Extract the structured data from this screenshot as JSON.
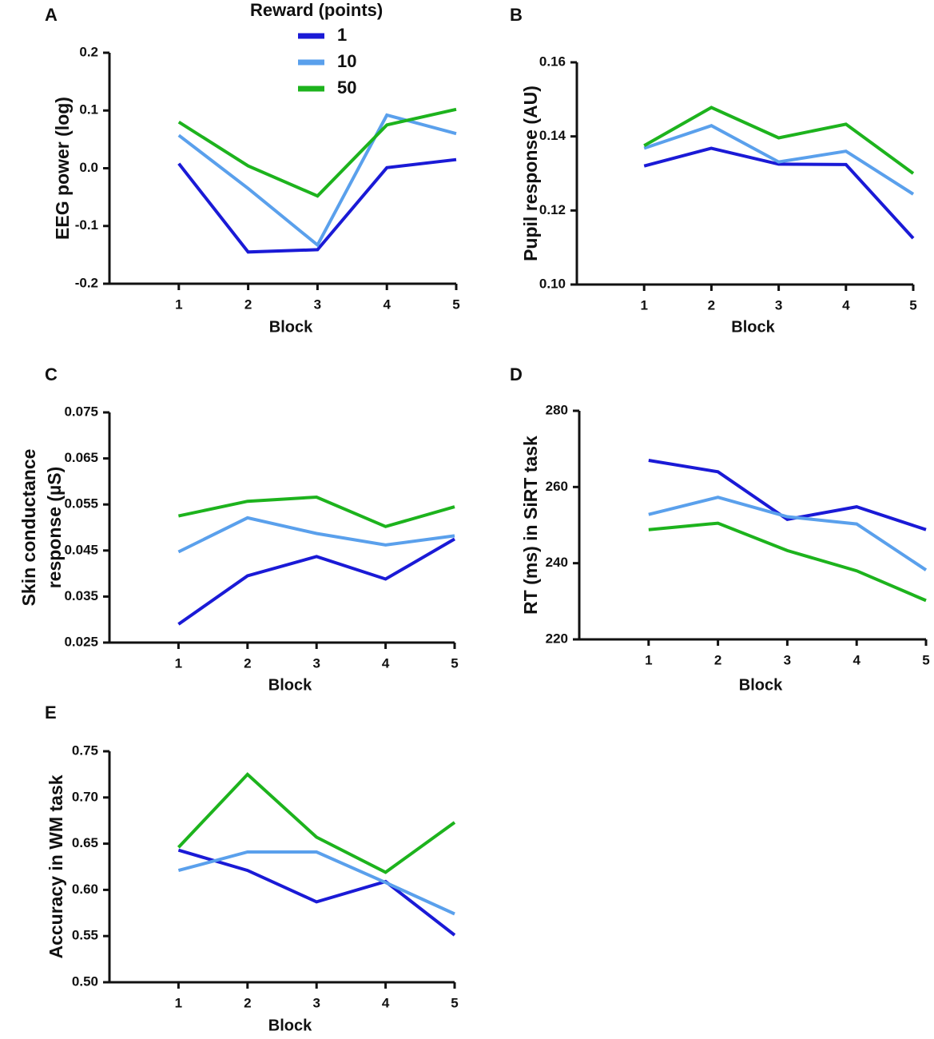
{
  "legend": {
    "title": "Reward (points)",
    "entries": [
      {
        "label": "1",
        "color": "#1a1ad6"
      },
      {
        "label": "10",
        "color": "#5aa0ec"
      },
      {
        "label": "50",
        "color": "#1db31d"
      }
    ]
  },
  "chart_data": [
    {
      "panel": "A",
      "type": "line",
      "title": "",
      "xlabel": "Block",
      "ylabel": "EEG power (log)",
      "x": [
        1,
        2,
        3,
        4,
        5
      ],
      "xticks": [
        "1",
        "2",
        "3",
        "4",
        "5"
      ],
      "ylim": [
        -0.2,
        0.2
      ],
      "yticks": [
        "-0.2",
        "-0.1",
        "0.0",
        "0.1",
        "0.2"
      ],
      "series": [
        {
          "name": "1",
          "values": [
            0.008,
            -0.145,
            -0.141,
            0.001,
            0.015
          ]
        },
        {
          "name": "10",
          "values": [
            0.057,
            -0.035,
            -0.133,
            0.092,
            0.06
          ]
        },
        {
          "name": "50",
          "values": [
            0.08,
            0.004,
            -0.048,
            0.075,
            0.102
          ]
        }
      ]
    },
    {
      "panel": "B",
      "type": "line",
      "title": "",
      "xlabel": "Block",
      "ylabel": "Pupil response (AU)",
      "x": [
        1,
        2,
        3,
        4,
        5
      ],
      "xticks": [
        "1",
        "2",
        "3",
        "4",
        "5"
      ],
      "ylim": [
        0.1,
        0.16
      ],
      "yticks": [
        "0.10",
        "0.12",
        "0.14",
        "0.16"
      ],
      "series": [
        {
          "name": "1",
          "values": [
            0.132,
            0.1368,
            0.1325,
            0.1324,
            0.1125
          ]
        },
        {
          "name": "10",
          "values": [
            0.1368,
            0.1429,
            0.1331,
            0.136,
            0.1244
          ]
        },
        {
          "name": "50",
          "values": [
            0.1375,
            0.1478,
            0.1396,
            0.1433,
            0.13
          ]
        }
      ]
    },
    {
      "panel": "C",
      "type": "line",
      "title": "",
      "xlabel": "Block",
      "ylabel": "Skin conductance response (µS)",
      "ylabel_lines": [
        "Skin conductance",
        "response (µS)"
      ],
      "x": [
        1,
        2,
        3,
        4,
        5
      ],
      "xticks": [
        "1",
        "2",
        "3",
        "4",
        "5"
      ],
      "ylim": [
        0.025,
        0.075
      ],
      "yticks": [
        "0.025",
        "0.035",
        "0.045",
        "0.055",
        "0.065",
        "0.075"
      ],
      "series": [
        {
          "name": "1",
          "values": [
            0.029,
            0.0395,
            0.0437,
            0.0388,
            0.0475
          ]
        },
        {
          "name": "10",
          "values": [
            0.0447,
            0.0521,
            0.0487,
            0.0462,
            0.0482
          ]
        },
        {
          "name": "50",
          "values": [
            0.0525,
            0.0557,
            0.0566,
            0.0502,
            0.0545
          ]
        }
      ]
    },
    {
      "panel": "D",
      "type": "line",
      "title": "",
      "xlabel": "Block",
      "ylabel": "RT (ms) in SiRT task",
      "x": [
        1,
        2,
        3,
        4,
        5
      ],
      "xticks": [
        "1",
        "2",
        "3",
        "4",
        "5"
      ],
      "ylim": [
        220,
        280
      ],
      "yticks": [
        "220",
        "240",
        "260",
        "280"
      ],
      "series": [
        {
          "name": "1",
          "values": [
            267.0,
            264.0,
            251.5,
            254.8,
            248.8
          ]
        },
        {
          "name": "10",
          "values": [
            252.8,
            257.3,
            252.2,
            250.3,
            238.2
          ]
        },
        {
          "name": "50",
          "values": [
            248.8,
            250.5,
            243.3,
            238.0,
            230.2
          ]
        }
      ]
    },
    {
      "panel": "E",
      "type": "line",
      "title": "",
      "xlabel": "Block",
      "ylabel": "Accuracy in WM task",
      "x": [
        1,
        2,
        3,
        4,
        5
      ],
      "xticks": [
        "1",
        "2",
        "3",
        "4",
        "5"
      ],
      "ylim": [
        0.5,
        0.75
      ],
      "yticks": [
        "0.50",
        "0.55",
        "0.60",
        "0.65",
        "0.70",
        "0.75"
      ],
      "series": [
        {
          "name": "1",
          "values": [
            0.643,
            0.621,
            0.587,
            0.609,
            0.551
          ]
        },
        {
          "name": "10",
          "values": [
            0.621,
            0.641,
            0.641,
            0.608,
            0.574
          ]
        },
        {
          "name": "50",
          "values": [
            0.646,
            0.725,
            0.657,
            0.619,
            0.673
          ]
        }
      ]
    }
  ]
}
